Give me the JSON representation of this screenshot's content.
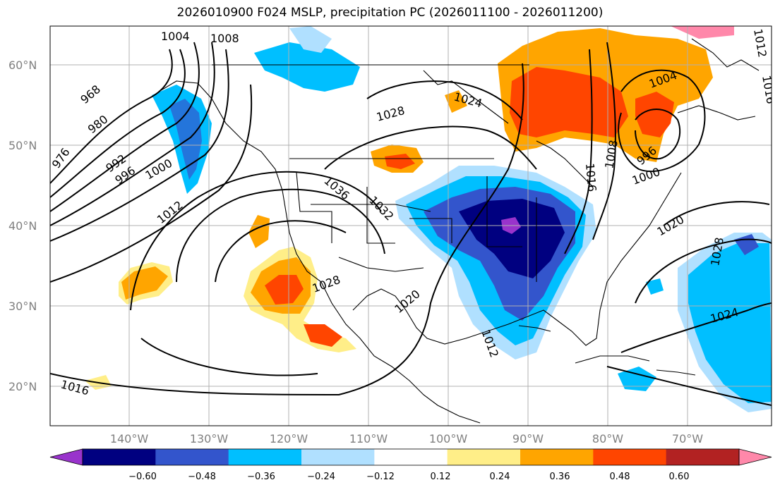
{
  "title": "2026010900 F024 MSLP, precipitation PC (2026011100 - 2026011200)",
  "lat_labels": [
    "60°N",
    "50°N",
    "40°N",
    "30°N",
    "20°N"
  ],
  "lon_labels": [
    "140°W",
    "130°W",
    "120°W",
    "110°W",
    "100°W",
    "90°W",
    "80°W",
    "70°W"
  ],
  "colorbar": {
    "ticks": [
      "−0.60",
      "−0.48",
      "−0.36",
      "−0.24",
      "−0.12",
      "0.12",
      "0.24",
      "0.36",
      "0.48",
      "0.60"
    ],
    "colors": [
      "#9933cc",
      "#000080",
      "#3355cc",
      "#00bfff",
      "#b0e0ff",
      "#ffffff",
      "#ffee88",
      "#ffa500",
      "#ff4500",
      "#b22222",
      "#ff88aa"
    ]
  },
  "isobar_labels": [
    "1004",
    "1008",
    "968",
    "980",
    "976",
    "992",
    "996",
    "1000",
    "1012",
    "1016",
    "1024",
    "1028",
    "1036",
    "1032",
    "1028",
    "1020",
    "1012",
    "1016",
    "1008",
    "1004",
    "996",
    "1000",
    "1020",
    "1028",
    "1024",
    "1012",
    "1016"
  ]
}
